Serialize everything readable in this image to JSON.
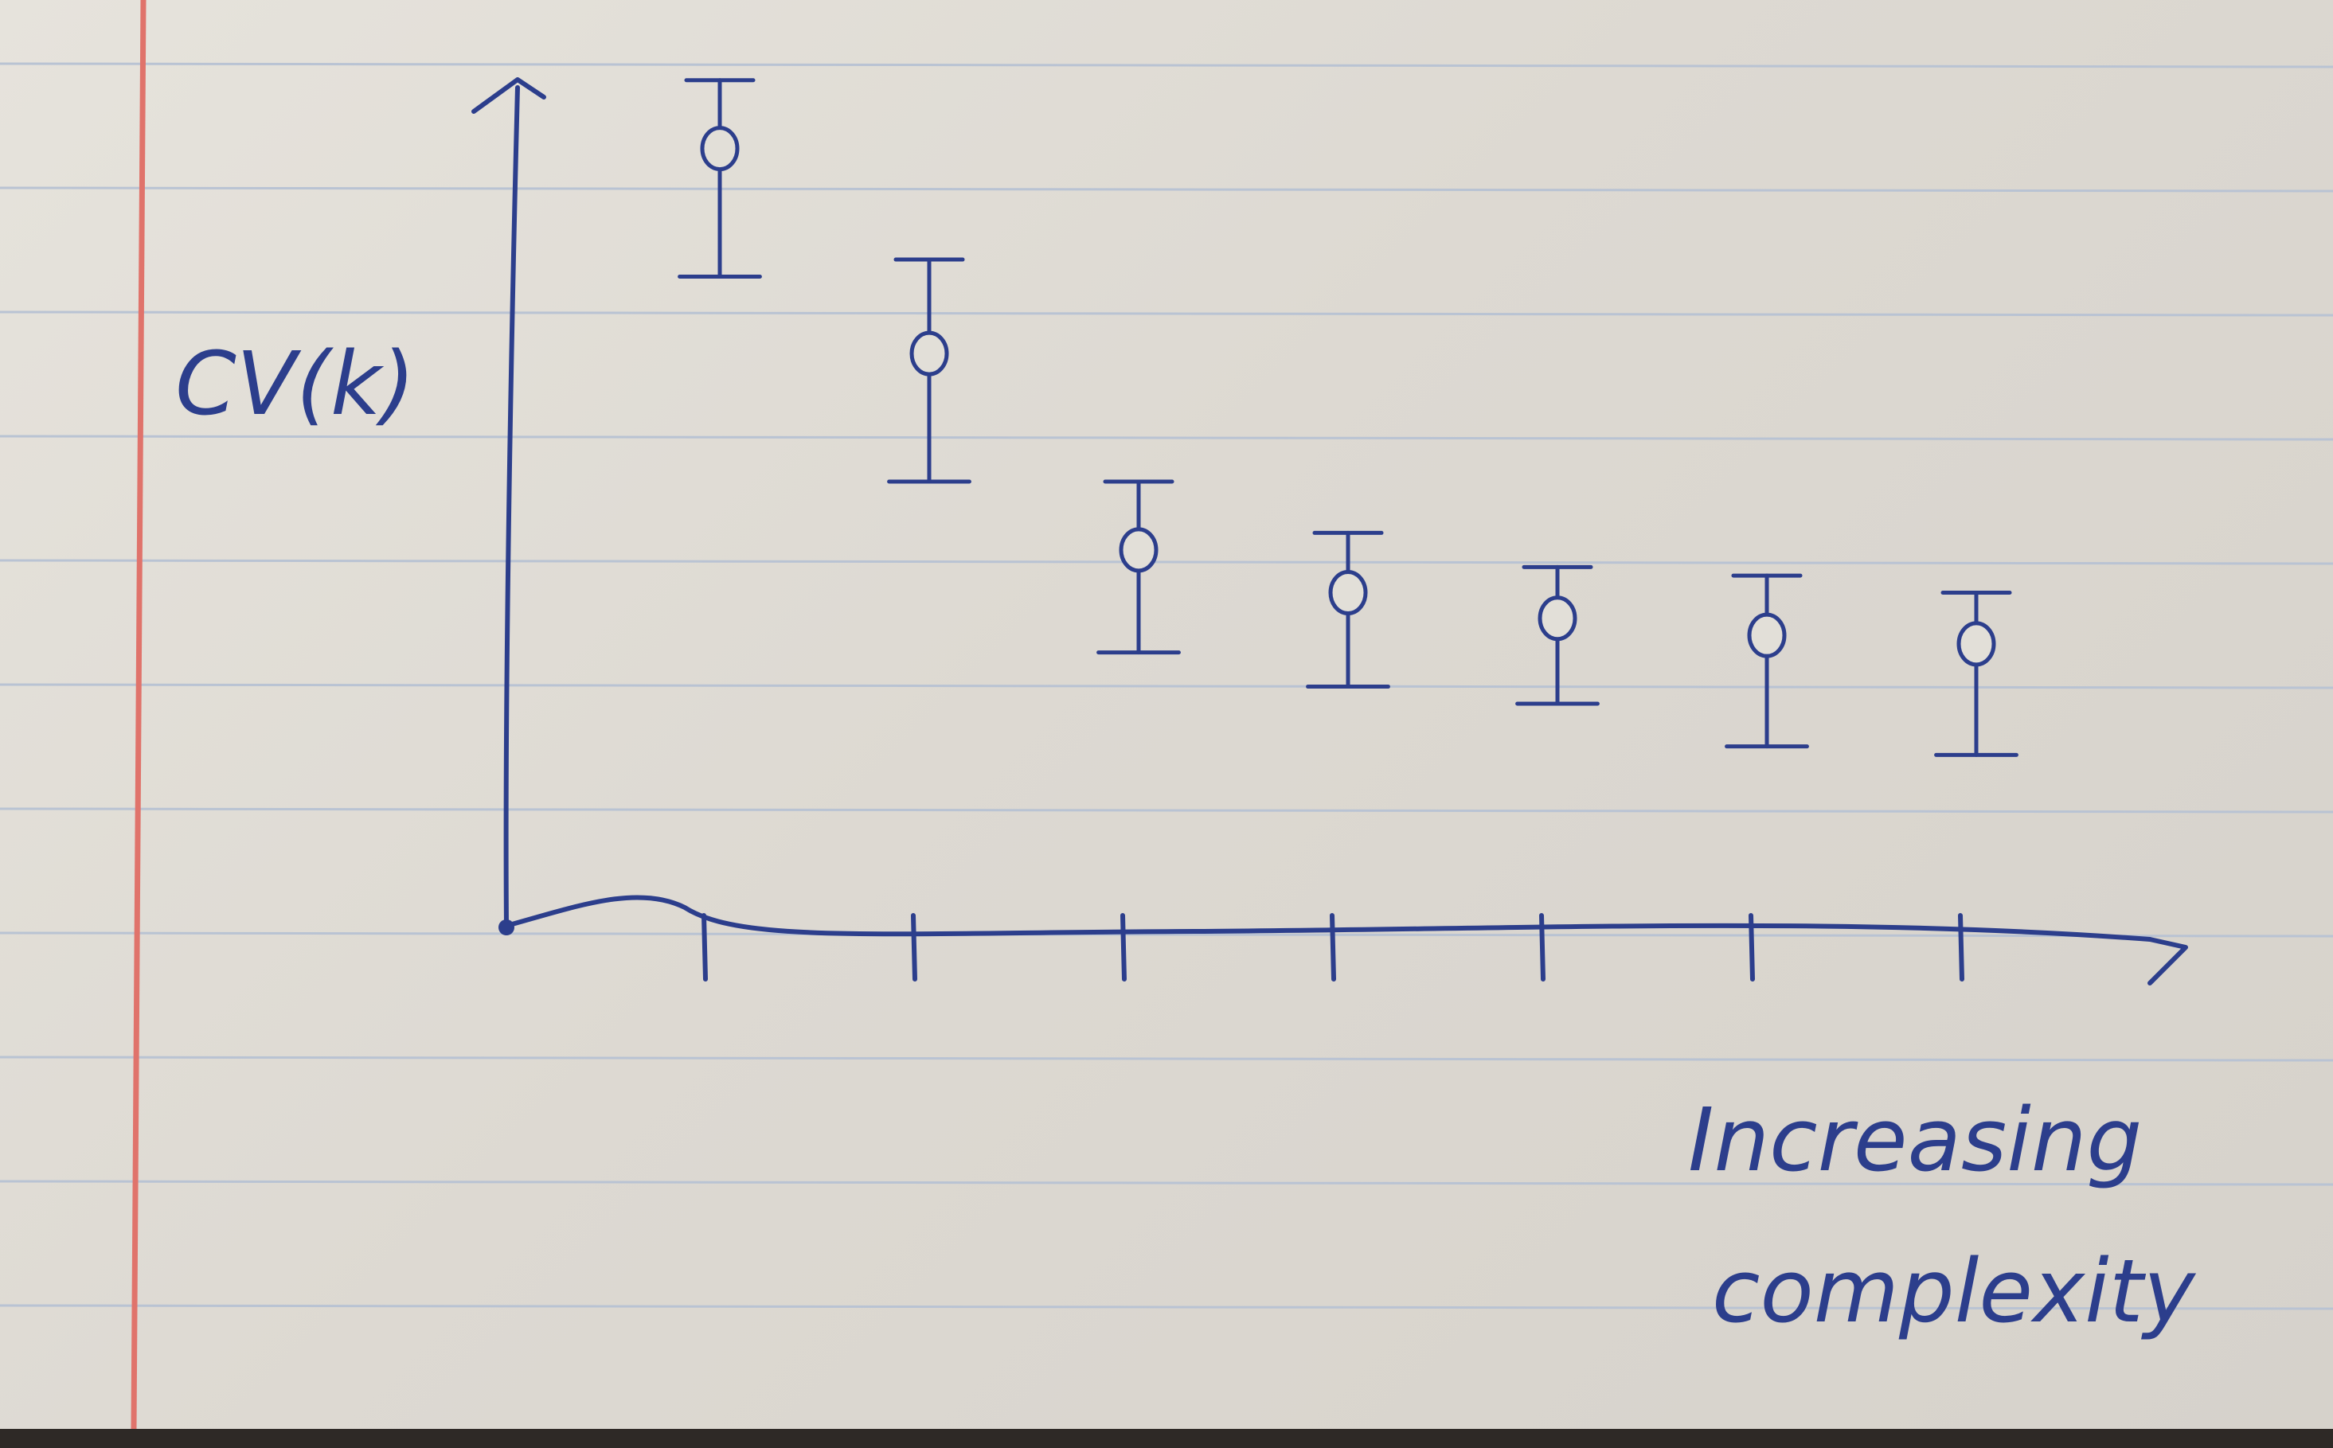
{
  "chart_data": {
    "type": "scatter",
    "ylabel": "CV(k)",
    "xlabel_lines": [
      "Increasing",
      "complexity"
    ],
    "x": [
      1,
      2,
      3,
      4,
      5,
      6,
      7
    ],
    "series": [
      {
        "y": [
          9.1,
          6.7,
          4.4,
          3.9,
          3.6,
          3.4,
          3.3
        ],
        "low": [
          7.6,
          5.2,
          3.2,
          2.8,
          2.6,
          2.1,
          2.0
        ],
        "high": [
          9.9,
          7.8,
          5.2,
          4.6,
          4.2,
          4.1,
          3.9
        ]
      }
    ],
    "xlim": [
      0,
      8
    ],
    "ylim": [
      0,
      10
    ],
    "grid": false,
    "style": "hand-drawn on lined notebook paper",
    "colors": {
      "ink": "#2c3e8c",
      "margin_line": "#e0736b",
      "rule_line": "#b9c3d3"
    }
  }
}
